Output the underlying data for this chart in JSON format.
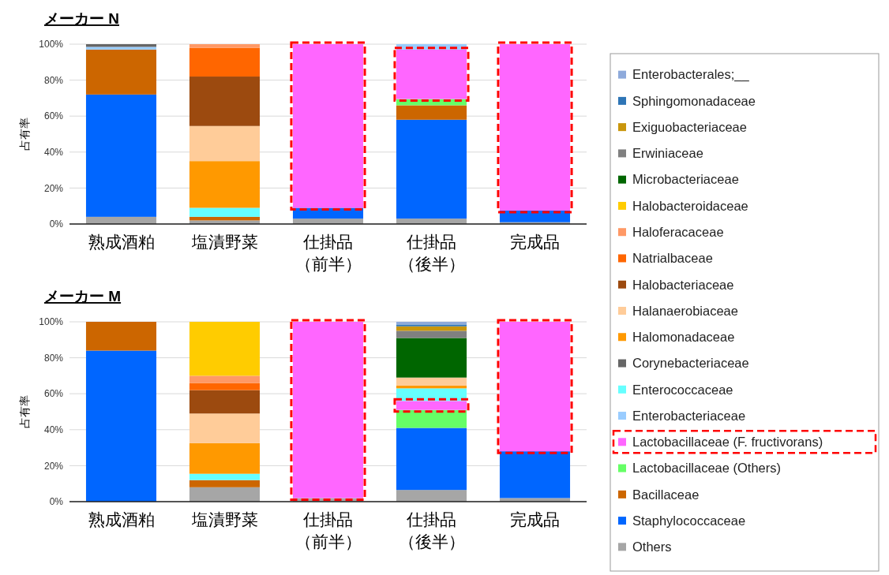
{
  "chart_data": [
    {
      "type": "bar",
      "stacked": true,
      "title": "メーカー N",
      "ylabel": "占有率",
      "categories": [
        "熟成酒粕",
        "塩漬野菜",
        "仕掛品（前半）",
        "仕掛品（後半）",
        "完成品"
      ],
      "ylim": [
        0,
        100
      ],
      "yticks": [
        {
          "value": 0,
          "label": "0%"
        },
        {
          "value": 20,
          "label": "20%"
        },
        {
          "value": 40,
          "label": "40%"
        },
        {
          "value": 60,
          "label": "60%"
        },
        {
          "value": 80,
          "label": "80%"
        },
        {
          "value": 100,
          "label": "100%"
        }
      ],
      "grid": "y",
      "legend": "right",
      "series": [
        {
          "name": "Others",
          "color": "#a6a6a6",
          "values": [
            4,
            2,
            3,
            3,
            1
          ]
        },
        {
          "name": "Staphylococcaceae",
          "color": "#0066ff",
          "values": [
            68,
            0,
            6,
            55,
            6.5
          ]
        },
        {
          "name": "Bacillaceae",
          "color": "#cc6600",
          "values": [
            25,
            2,
            0,
            8,
            0
          ]
        },
        {
          "name": "Lactobacillaceae (Others)",
          "color": "#66ff66",
          "values": [
            0,
            0,
            0,
            3.5,
            0
          ]
        },
        {
          "name": "Lactobacillaceae (F. fructivorans)",
          "color": "#ff66ff",
          "line_style": "dashed",
          "values": [
            0,
            0,
            91,
            27.5,
            92.5
          ]
        },
        {
          "name": "Enterobacteriaceae",
          "color": "#99ccff",
          "values": [
            1.5,
            0,
            0,
            3,
            0
          ]
        },
        {
          "name": "Enterococcaceae",
          "color": "#66ffff",
          "values": [
            0,
            5,
            0,
            0,
            0
          ]
        },
        {
          "name": "Corynebacteriaceae",
          "color": "#666666",
          "values": [
            1.5,
            0,
            0,
            0,
            0
          ]
        },
        {
          "name": "Halomonadaceae",
          "color": "#ff9900",
          "values": [
            0,
            26,
            0,
            0,
            0
          ]
        },
        {
          "name": "Halanaerobiaceae",
          "color": "#ffcc99",
          "values": [
            0,
            19.5,
            0,
            0,
            0
          ]
        },
        {
          "name": "Halobacteriaceae",
          "color": "#9c4a0f",
          "values": [
            0,
            27.5,
            0,
            0,
            0
          ]
        },
        {
          "name": "Natrialbaceae",
          "color": "#ff6600",
          "values": [
            0,
            16,
            0,
            0,
            0
          ]
        },
        {
          "name": "Haloferacaceae",
          "color": "#ff9966",
          "values": [
            0,
            2,
            0,
            0,
            0
          ]
        }
      ]
    },
    {
      "type": "bar",
      "stacked": true,
      "title": "メーカー M",
      "ylabel": "占有率",
      "categories": [
        "熟成酒粕",
        "塩漬野菜",
        "仕掛品（前半）",
        "仕掛品（後半）",
        "完成品"
      ],
      "ylim": [
        0,
        100
      ],
      "yticks": [
        {
          "value": 0,
          "label": "0%"
        },
        {
          "value": 20,
          "label": "20%"
        },
        {
          "value": 40,
          "label": "40%"
        },
        {
          "value": 60,
          "label": "60%"
        },
        {
          "value": 80,
          "label": "80%"
        },
        {
          "value": 100,
          "label": "100%"
        }
      ],
      "grid": "y",
      "legend": "right",
      "series": [
        {
          "name": "Others",
          "color": "#a6a6a6",
          "values": [
            0,
            8,
            2,
            6.5,
            2
          ]
        },
        {
          "name": "Staphylococcaceae",
          "color": "#0066ff",
          "values": [
            84,
            0,
            0,
            34.5,
            26
          ]
        },
        {
          "name": "Bacillaceae",
          "color": "#cc6600",
          "values": [
            16,
            4,
            0,
            0,
            0
          ]
        },
        {
          "name": "Lactobacillaceae (Others)",
          "color": "#66ff66",
          "values": [
            0,
            0,
            0,
            10,
            0
          ]
        },
        {
          "name": "Lactobacillaceae (F. fructivorans)",
          "color": "#ff66ff",
          "line_style": "dashed",
          "values": [
            0,
            0,
            98,
            5,
            72
          ]
        },
        {
          "name": "Enterococcaceae",
          "color": "#66ffff",
          "values": [
            0,
            3.5,
            0,
            7,
            0
          ]
        },
        {
          "name": "Halomonadaceae",
          "color": "#ff9900",
          "values": [
            0,
            17,
            0,
            1.5,
            0
          ]
        },
        {
          "name": "Halanaerobiaceae",
          "color": "#ffcc99",
          "values": [
            0,
            16.5,
            0,
            4.5,
            0
          ]
        },
        {
          "name": "Halobacteriaceae",
          "color": "#9c4a0f",
          "values": [
            0,
            13,
            0,
            0,
            0
          ]
        },
        {
          "name": "Natrialbaceae",
          "color": "#ff6600",
          "values": [
            0,
            4,
            0,
            0,
            0
          ]
        },
        {
          "name": "Haloferacaceae",
          "color": "#ff9966",
          "values": [
            0,
            4,
            0,
            0,
            0
          ]
        },
        {
          "name": "Halobacteroidaceae",
          "color": "#ffcc00",
          "values": [
            0,
            30,
            0,
            0,
            0
          ]
        },
        {
          "name": "Microbacteriaceae",
          "color": "#006600",
          "values": [
            0,
            0,
            0,
            22,
            0
          ]
        },
        {
          "name": "Erwiniaceae",
          "color": "#808080",
          "values": [
            0,
            0,
            0,
            4,
            0
          ]
        },
        {
          "name": "Exiguobacteriaceae",
          "color": "#c9960c",
          "values": [
            0,
            0,
            0,
            2.5,
            0
          ]
        },
        {
          "name": "Sphingomonadaceae",
          "color": "#2e75b6",
          "values": [
            0,
            0,
            0,
            1,
            0
          ]
        },
        {
          "name": "Enterobacterales;__",
          "color": "#8eaadb",
          "values": [
            0,
            0,
            0,
            1.5,
            0
          ]
        }
      ]
    }
  ]
}
